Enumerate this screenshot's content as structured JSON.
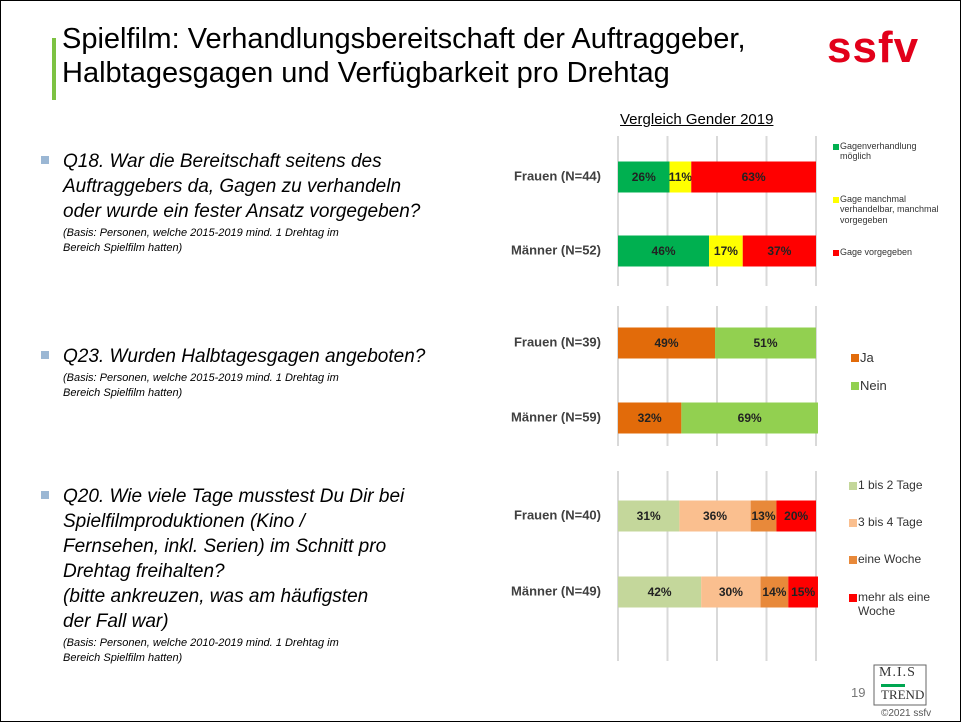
{
  "slide": {
    "title_lines": [
      "Spielfilm: Verhandlungsbereitschaft der Auftraggeber,",
      "Halbtagesgagen und Verfügbarkeit pro Drehtag"
    ],
    "logo": "ssfv",
    "subtitle": "Vergleich Gender 2019",
    "page_number": "19",
    "partner_logo": [
      "M.I.S",
      "TREND"
    ],
    "copyright": "©2021 ssfv"
  },
  "questions": [
    {
      "lines": [
        "Q18. War die Bereitschaft seitens des",
        "Auftraggebers da, Gagen zu verhandeln",
        "oder wurde ein fester Ansatz vorgegeben?"
      ],
      "basis_lines": [
        "(Basis: Personen, welche 2015-2019 mind. 1 Drehtag im",
        "Bereich Spielfilm hatten)"
      ]
    },
    {
      "lines": [
        "Q23. Wurden Halbtagesgagen angeboten?"
      ],
      "basis_lines": [
        "(Basis: Personen, welche 2015-2019 mind. 1 Drehtag im",
        "Bereich Spielfilm hatten)"
      ]
    },
    {
      "lines": [
        "Q20. Wie viele Tage musstest Du Dir bei",
        "Spielfilmproduktionen (Kino /",
        "Fernsehen, inkl. Serien) im Schnitt pro",
        "Drehtag freihalten?",
        "(bitte ankreuzen, was am häufigsten",
        "der Fall war)"
      ],
      "basis_lines": [
        "(Basis: Personen, welche 2010-2019 mind. 1 Drehtag im",
        "Bereich Spielfilm hatten)"
      ]
    }
  ],
  "chart_data": [
    {
      "type": "barh",
      "stacked": true,
      "legend": "right",
      "grid": true,
      "categories": [
        "Frauen (N=44)",
        "Männer (N=52)"
      ],
      "xlim": [
        0,
        100
      ],
      "xticks": [
        0,
        25,
        50,
        75,
        100
      ],
      "series": [
        {
          "name": "Gagenverhandlung möglich",
          "color": "#00b050",
          "values": [
            26,
            46
          ],
          "value_labels": [
            "26%",
            "46%"
          ]
        },
        {
          "name": "Gage manchmal verhandelbar, manchmal vorgegeben",
          "color": "#ffff00",
          "values": [
            11,
            17
          ],
          "value_labels": [
            "11%",
            "17%"
          ]
        },
        {
          "name": "Gage vorgegeben",
          "color": "#ff0000",
          "values": [
            63,
            37
          ],
          "value_labels": [
            "63%",
            "37%"
          ]
        }
      ]
    },
    {
      "type": "barh",
      "stacked": true,
      "legend": "right",
      "grid": true,
      "categories": [
        "Frauen (N=39)",
        "Männer (N=59)"
      ],
      "xlim": [
        0,
        100
      ],
      "xticks": [
        0,
        25,
        50,
        75,
        100
      ],
      "series": [
        {
          "name": "Ja",
          "color": "#e26b0a",
          "values": [
            49,
            32
          ],
          "value_labels": [
            "49%",
            "32%"
          ]
        },
        {
          "name": "Nein",
          "color": "#92d050",
          "values": [
            51,
            69
          ],
          "value_labels": [
            "51%",
            "69%"
          ]
        }
      ]
    },
    {
      "type": "barh",
      "stacked": true,
      "legend": "right",
      "grid": true,
      "categories": [
        "Frauen (N=40)",
        "Männer (N=49)"
      ],
      "xlim": [
        0,
        100
      ],
      "xticks": [
        0,
        25,
        50,
        75,
        100
      ],
      "series": [
        {
          "name": "1 bis 2 Tage",
          "color": "#c4d79b",
          "values": [
            31,
            42
          ],
          "value_labels": [
            "31%",
            "42%"
          ]
        },
        {
          "name": "3 bis 4 Tage",
          "color": "#fabf8f",
          "values": [
            36,
            30
          ],
          "value_labels": [
            "36%",
            "30%"
          ]
        },
        {
          "name": "eine Woche",
          "color": "#e8893a",
          "values": [
            13,
            14
          ],
          "value_labels": [
            "13%",
            "14%"
          ]
        },
        {
          "name": "mehr als eine Woche",
          "color": "#ff0000",
          "values": [
            20,
            15
          ],
          "value_labels": [
            "20%",
            "15%"
          ]
        }
      ]
    }
  ]
}
